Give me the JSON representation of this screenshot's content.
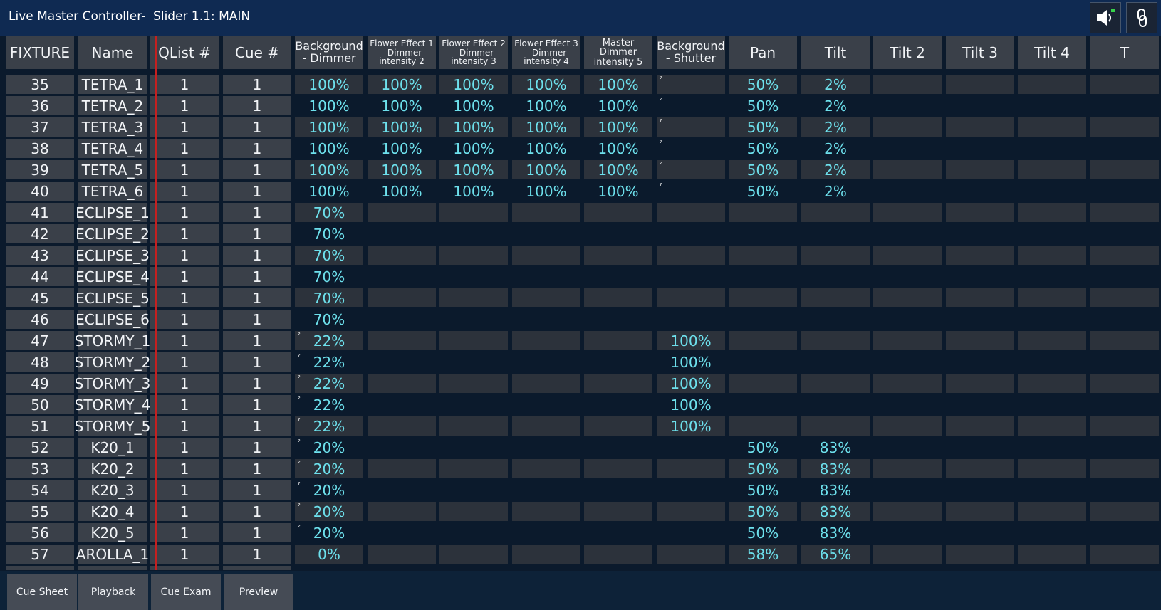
{
  "window": {
    "title": "Live Master Controller-  Slider 1.1: MAIN",
    "buttons": [
      {
        "name": "speaker-button",
        "icon": "speaker-icon"
      },
      {
        "name": "link-button",
        "icon": "link-icon"
      }
    ]
  },
  "columns": [
    "FIXTURE",
    "Name",
    "QList #",
    "Cue #",
    "Background - Dimmer",
    "Flower Effect 1 - Dimmer intensity 2",
    "Flower Effect 2 - Dimmer intensity 3",
    "Flower Effect 3 - Dimmer intensity 4",
    "Master Dimmer intensity 5",
    "Background - Shutter",
    "Pan",
    "Tilt",
    "Tilt 2",
    "Tilt 3",
    "Tilt 4",
    "T"
  ],
  "rows": [
    {
      "fixture": "35",
      "name": "TETRA_1",
      "qlist": "1",
      "cue": "1",
      "values": [
        "100%",
        "100%",
        "100%",
        "100%",
        "100%",
        "",
        "50%",
        "2%",
        "",
        "",
        "",
        ""
      ],
      "marks": [
        9
      ]
    },
    {
      "fixture": "36",
      "name": "TETRA_2",
      "qlist": "1",
      "cue": "1",
      "values": [
        "100%",
        "100%",
        "100%",
        "100%",
        "100%",
        "",
        "50%",
        "2%",
        "",
        "",
        "",
        ""
      ],
      "marks": [
        9
      ]
    },
    {
      "fixture": "37",
      "name": "TETRA_3",
      "qlist": "1",
      "cue": "1",
      "values": [
        "100%",
        "100%",
        "100%",
        "100%",
        "100%",
        "",
        "50%",
        "2%",
        "",
        "",
        "",
        ""
      ],
      "marks": [
        9
      ]
    },
    {
      "fixture": "38",
      "name": "TETRA_4",
      "qlist": "1",
      "cue": "1",
      "values": [
        "100%",
        "100%",
        "100%",
        "100%",
        "100%",
        "",
        "50%",
        "2%",
        "",
        "",
        "",
        ""
      ],
      "marks": [
        9
      ]
    },
    {
      "fixture": "39",
      "name": "TETRA_5",
      "qlist": "1",
      "cue": "1",
      "values": [
        "100%",
        "100%",
        "100%",
        "100%",
        "100%",
        "",
        "50%",
        "2%",
        "",
        "",
        "",
        ""
      ],
      "marks": [
        9
      ]
    },
    {
      "fixture": "40",
      "name": "TETRA_6",
      "qlist": "1",
      "cue": "1",
      "values": [
        "100%",
        "100%",
        "100%",
        "100%",
        "100%",
        "",
        "50%",
        "2%",
        "",
        "",
        "",
        ""
      ],
      "marks": [
        9
      ]
    },
    {
      "fixture": "41",
      "name": "ECLIPSE_1",
      "qlist": "1",
      "cue": "1",
      "values": [
        "70%",
        "",
        "",
        "",
        "",
        "",
        "",
        "",
        "",
        "",
        "",
        ""
      ],
      "marks": []
    },
    {
      "fixture": "42",
      "name": "ECLIPSE_2",
      "qlist": "1",
      "cue": "1",
      "values": [
        "70%",
        "",
        "",
        "",
        "",
        "",
        "",
        "",
        "",
        "",
        "",
        ""
      ],
      "marks": []
    },
    {
      "fixture": "43",
      "name": "ECLIPSE_3",
      "qlist": "1",
      "cue": "1",
      "values": [
        "70%",
        "",
        "",
        "",
        "",
        "",
        "",
        "",
        "",
        "",
        "",
        ""
      ],
      "marks": []
    },
    {
      "fixture": "44",
      "name": "ECLIPSE_4",
      "qlist": "1",
      "cue": "1",
      "values": [
        "70%",
        "",
        "",
        "",
        "",
        "",
        "",
        "",
        "",
        "",
        "",
        ""
      ],
      "marks": []
    },
    {
      "fixture": "45",
      "name": "ECLIPSE_5",
      "qlist": "1",
      "cue": "1",
      "values": [
        "70%",
        "",
        "",
        "",
        "",
        "",
        "",
        "",
        "",
        "",
        "",
        ""
      ],
      "marks": []
    },
    {
      "fixture": "46",
      "name": "ECLIPSE_6",
      "qlist": "1",
      "cue": "1",
      "values": [
        "70%",
        "",
        "",
        "",
        "",
        "",
        "",
        "",
        "",
        "",
        "",
        ""
      ],
      "marks": []
    },
    {
      "fixture": "47",
      "name": "STORMY_1",
      "qlist": "1",
      "cue": "1",
      "values": [
        "22%",
        "",
        "",
        "",
        "",
        "100%",
        "",
        "",
        "",
        "",
        "",
        ""
      ],
      "marks": [
        4
      ]
    },
    {
      "fixture": "48",
      "name": "STORMY_2",
      "qlist": "1",
      "cue": "1",
      "values": [
        "22%",
        "",
        "",
        "",
        "",
        "100%",
        "",
        "",
        "",
        "",
        "",
        ""
      ],
      "marks": [
        4
      ]
    },
    {
      "fixture": "49",
      "name": "STORMY_3",
      "qlist": "1",
      "cue": "1",
      "values": [
        "22%",
        "",
        "",
        "",
        "",
        "100%",
        "",
        "",
        "",
        "",
        "",
        ""
      ],
      "marks": [
        4
      ]
    },
    {
      "fixture": "50",
      "name": "STORMY_4",
      "qlist": "1",
      "cue": "1",
      "values": [
        "22%",
        "",
        "",
        "",
        "",
        "100%",
        "",
        "",
        "",
        "",
        "",
        ""
      ],
      "marks": [
        4
      ]
    },
    {
      "fixture": "51",
      "name": "STORMY_5",
      "qlist": "1",
      "cue": "1",
      "values": [
        "22%",
        "",
        "",
        "",
        "",
        "100%",
        "",
        "",
        "",
        "",
        "",
        ""
      ],
      "marks": [
        4
      ]
    },
    {
      "fixture": "52",
      "name": "K20_1",
      "qlist": "1",
      "cue": "1",
      "values": [
        "20%",
        "",
        "",
        "",
        "",
        "",
        "50%",
        "83%",
        "",
        "",
        "",
        ""
      ],
      "marks": [
        4
      ]
    },
    {
      "fixture": "53",
      "name": "K20_2",
      "qlist": "1",
      "cue": "1",
      "values": [
        "20%",
        "",
        "",
        "",
        "",
        "",
        "50%",
        "83%",
        "",
        "",
        "",
        ""
      ],
      "marks": [
        4
      ]
    },
    {
      "fixture": "54",
      "name": "K20_3",
      "qlist": "1",
      "cue": "1",
      "values": [
        "20%",
        "",
        "",
        "",
        "",
        "",
        "50%",
        "83%",
        "",
        "",
        "",
        ""
      ],
      "marks": [
        4
      ]
    },
    {
      "fixture": "55",
      "name": "K20_4",
      "qlist": "1",
      "cue": "1",
      "values": [
        "20%",
        "",
        "",
        "",
        "",
        "",
        "50%",
        "83%",
        "",
        "",
        "",
        ""
      ],
      "marks": [
        4
      ]
    },
    {
      "fixture": "56",
      "name": "K20_5",
      "qlist": "1",
      "cue": "1",
      "values": [
        "20%",
        "",
        "",
        "",
        "",
        "",
        "50%",
        "83%",
        "",
        "",
        "",
        ""
      ],
      "marks": [
        4
      ]
    },
    {
      "fixture": "57",
      "name": "AROLLA_1",
      "qlist": "1",
      "cue": "1",
      "values": [
        "0%",
        "",
        "",
        "",
        "",
        "",
        "58%",
        "65%",
        "",
        "",
        "",
        ""
      ],
      "marks": []
    }
  ],
  "mark_glyph": "ˀ",
  "tabs": [
    {
      "label": "Cue Sheet",
      "active": false
    },
    {
      "label": "Playback",
      "active": false
    },
    {
      "label": "Cue Exam",
      "active": true
    },
    {
      "label": "Preview",
      "active": false
    }
  ],
  "colors": {
    "value_text": "#6de0ec",
    "active_tab": "#6a2cff",
    "titlebar": "#0f2a52",
    "separator": "#c42020"
  }
}
